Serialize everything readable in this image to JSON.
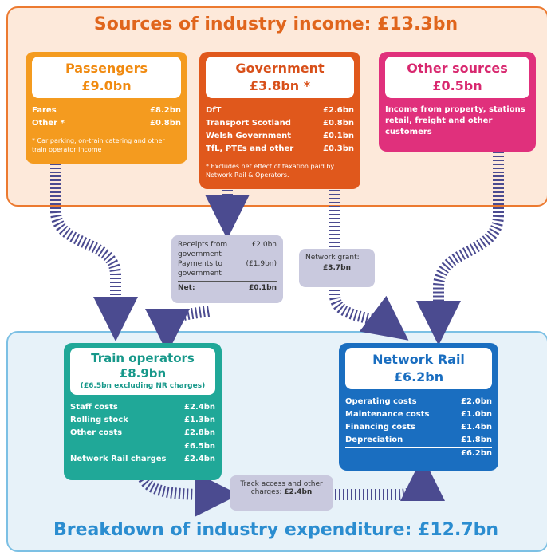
{
  "income": {
    "title": "Sources of industry income: £13.3bn"
  },
  "passengers": {
    "title": "Passengers",
    "total": "£9.0bn",
    "rows": [
      [
        "Fares",
        "£8.2bn"
      ],
      [
        "Other *",
        "£0.8bn"
      ]
    ],
    "note": "* Car parking, on-train catering and other train operator income"
  },
  "government": {
    "title": "Government",
    "total": "£3.8bn *",
    "rows": [
      [
        "DfT",
        "£2.6bn"
      ],
      [
        "Transport Scotland",
        "£0.8bn"
      ],
      [
        "Welsh Government",
        "£0.1bn"
      ],
      [
        "TfL, PTEs and other",
        "£0.3bn"
      ]
    ],
    "note": "* Excludes net effect of taxation paid by Network Rail & Operators."
  },
  "other_sources": {
    "title": "Other sources",
    "total": "£0.5bn",
    "text": "Income from property, stations retail, freight and other customers"
  },
  "receipts": {
    "rows": [
      [
        "Receipts from government",
        "£2.0bn"
      ],
      [
        "Payments to government",
        "(£1.9bn)"
      ],
      [
        "Net:",
        "£0.1bn"
      ]
    ]
  },
  "network_grant": {
    "label": "Network grant:",
    "value": "£3.7bn"
  },
  "train_operators": {
    "title": "Train operators",
    "total": "£8.9bn",
    "subtitle": "(£6.5bn excluding NR charges)",
    "rows": [
      [
        "Staff costs",
        "£2.4bn"
      ],
      [
        "Rolling stock",
        "£1.3bn"
      ],
      [
        "Other costs",
        "£2.8bn"
      ]
    ],
    "subtotal": "£6.5bn",
    "nr_charges": [
      "Network Rail charges",
      "£2.4bn"
    ]
  },
  "network_rail": {
    "title": "Network Rail",
    "total": "£6.2bn",
    "rows": [
      [
        "Operating costs",
        "£2.0bn"
      ],
      [
        "Maintenance costs",
        "£1.0bn"
      ],
      [
        "Financing costs",
        "£1.4bn"
      ],
      [
        "Depreciation",
        "£1.8bn"
      ]
    ],
    "subtotal": "£6.2bn"
  },
  "track_access": {
    "label": "Track access and other charges:",
    "value": "£2.4bn"
  },
  "expenditure": {
    "title": "Breakdown of industry expenditure: £12.7bn"
  }
}
